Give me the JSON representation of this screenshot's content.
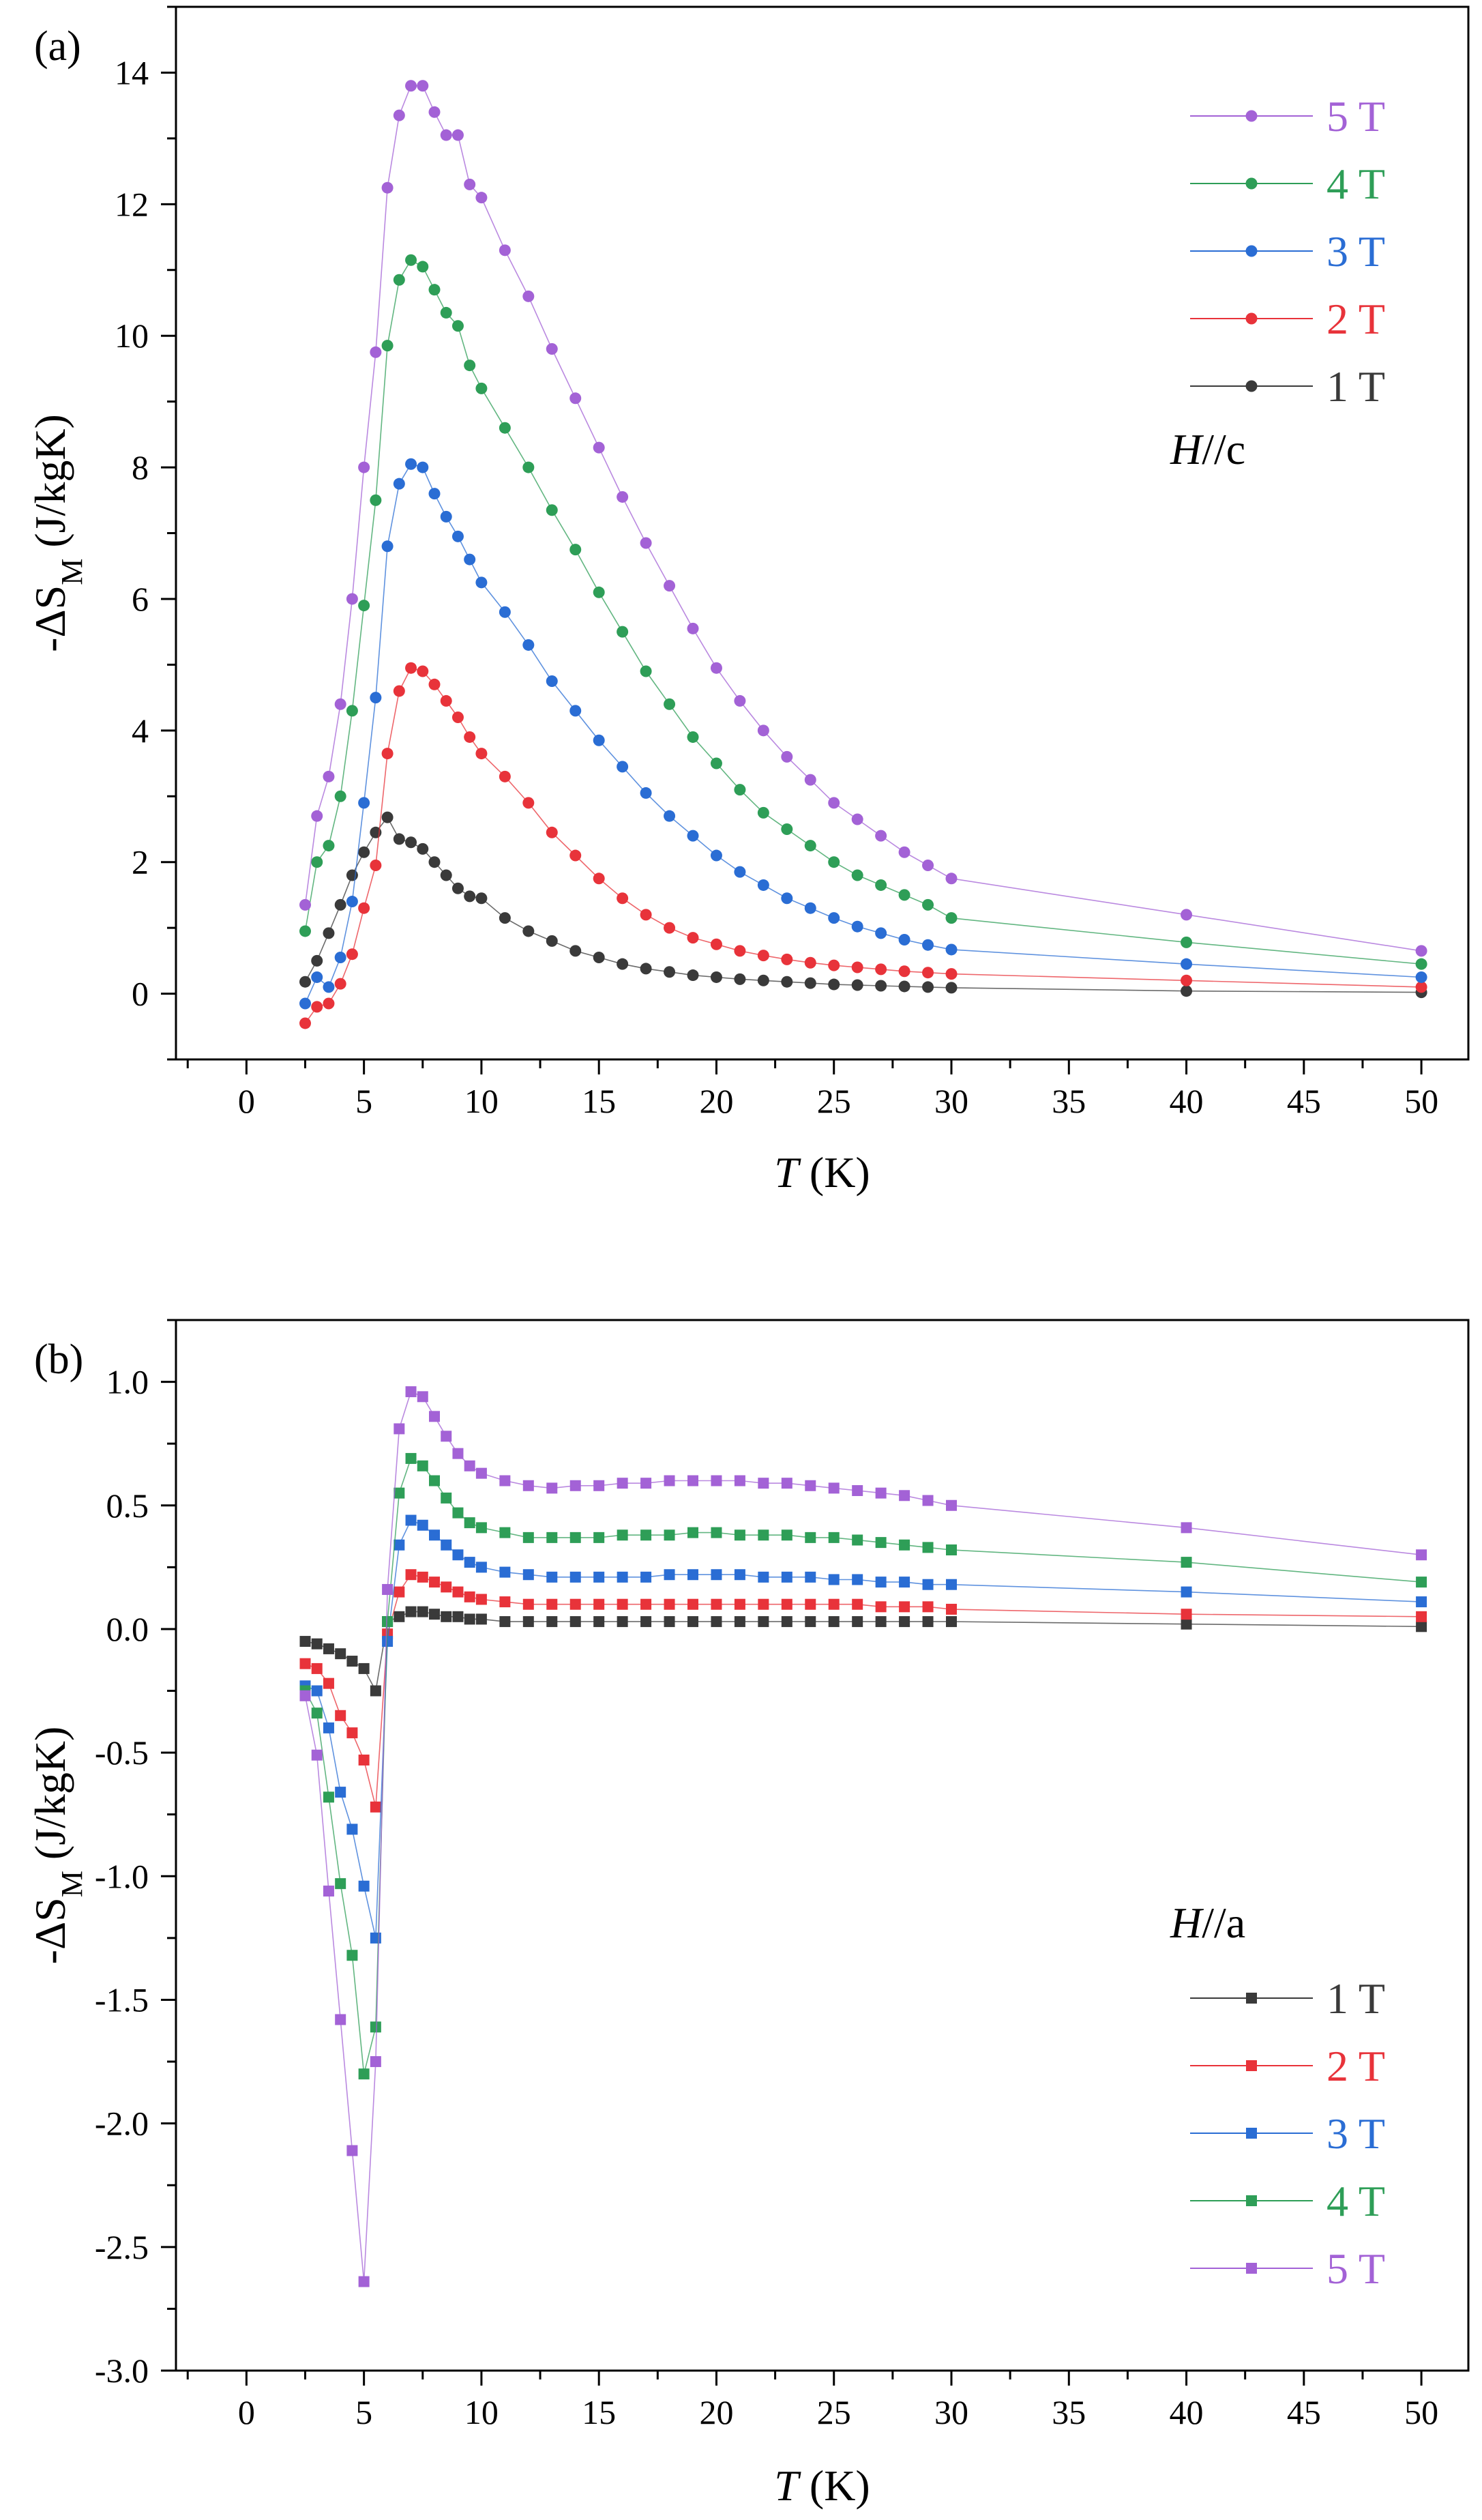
{
  "chart_data": [
    {
      "type": "line",
      "panel_label": "(a)",
      "xlabel_main": "T",
      "xlabel_unit": " (K)",
      "ylabel_main": "-ΔS",
      "ylabel_sub": "M",
      "ylabel_unit": " (J/kgK)",
      "xlim": [
        -3,
        52
      ],
      "ylim": [
        -1,
        15
      ],
      "xticks": [
        0,
        5,
        10,
        15,
        20,
        25,
        30,
        35,
        40,
        45,
        50
      ],
      "yticks": [
        0,
        2,
        4,
        6,
        8,
        10,
        12,
        14
      ],
      "marker": "circle",
      "legend_position": "top-right",
      "legend_order": [
        "5 T",
        "4 T",
        "3 T",
        "2 T",
        "1 T"
      ],
      "annotation_field": "H",
      "annotation_axis": "//c",
      "series": [
        {
          "name": "1 T",
          "color": "#3a3a3a",
          "x": [
            2.5,
            3,
            3.5,
            4,
            4.5,
            5,
            5.5,
            6,
            6.5,
            7,
            7.5,
            8,
            8.5,
            9,
            9.5,
            10,
            11,
            12,
            13,
            14,
            15,
            16,
            17,
            18,
            19,
            20,
            21,
            22,
            23,
            24,
            25,
            26,
            27,
            28,
            29,
            30,
            40,
            50
          ],
          "y": [
            0.18,
            0.5,
            0.92,
            1.35,
            1.8,
            2.15,
            2.45,
            2.68,
            2.35,
            2.3,
            2.2,
            2.0,
            1.8,
            1.6,
            1.48,
            1.45,
            1.15,
            0.95,
            0.8,
            0.65,
            0.55,
            0.45,
            0.38,
            0.33,
            0.28,
            0.25,
            0.22,
            0.2,
            0.18,
            0.16,
            0.14,
            0.13,
            0.12,
            0.11,
            0.1,
            0.09,
            0.04,
            0.02
          ]
        },
        {
          "name": "2 T",
          "color": "#e8333a",
          "x": [
            2.5,
            3,
            3.5,
            4,
            4.5,
            5,
            5.5,
            6,
            6.5,
            7,
            7.5,
            8,
            8.5,
            9,
            9.5,
            10,
            11,
            12,
            13,
            14,
            15,
            16,
            17,
            18,
            19,
            20,
            21,
            22,
            23,
            24,
            25,
            26,
            27,
            28,
            29,
            30,
            40,
            50
          ],
          "y": [
            -0.45,
            -0.2,
            -0.15,
            0.15,
            0.6,
            1.3,
            1.95,
            3.65,
            4.6,
            4.95,
            4.9,
            4.7,
            4.45,
            4.2,
            3.9,
            3.65,
            3.3,
            2.9,
            2.45,
            2.1,
            1.75,
            1.45,
            1.2,
            1.0,
            0.85,
            0.75,
            0.65,
            0.58,
            0.52,
            0.47,
            0.43,
            0.4,
            0.37,
            0.34,
            0.32,
            0.3,
            0.2,
            0.1
          ]
        },
        {
          "name": "3 T",
          "color": "#2a6dd4",
          "x": [
            2.5,
            3,
            3.5,
            4,
            4.5,
            5,
            5.5,
            6,
            6.5,
            7,
            7.5,
            8,
            8.5,
            9,
            9.5,
            10,
            11,
            12,
            13,
            14,
            15,
            16,
            17,
            18,
            19,
            20,
            21,
            22,
            23,
            24,
            25,
            26,
            27,
            28,
            29,
            30,
            40,
            50
          ],
          "y": [
            -0.15,
            0.25,
            0.1,
            0.55,
            1.4,
            2.9,
            4.5,
            6.8,
            7.75,
            8.05,
            8.0,
            7.6,
            7.25,
            6.95,
            6.6,
            6.25,
            5.8,
            5.3,
            4.75,
            4.3,
            3.85,
            3.45,
            3.05,
            2.7,
            2.4,
            2.1,
            1.85,
            1.65,
            1.45,
            1.3,
            1.15,
            1.02,
            0.92,
            0.82,
            0.74,
            0.67,
            0.45,
            0.25
          ]
        },
        {
          "name": "4 T",
          "color": "#2e9e57",
          "x": [
            2.5,
            3,
            3.5,
            4,
            4.5,
            5,
            5.5,
            6,
            6.5,
            7,
            7.5,
            8,
            8.5,
            9,
            9.5,
            10,
            11,
            12,
            13,
            14,
            15,
            16,
            17,
            18,
            19,
            20,
            21,
            22,
            23,
            24,
            25,
            26,
            27,
            28,
            29,
            30,
            40,
            50
          ],
          "y": [
            0.95,
            2.0,
            2.25,
            3.0,
            4.3,
            5.9,
            7.5,
            9.85,
            10.85,
            11.15,
            11.05,
            10.7,
            10.35,
            10.15,
            9.55,
            9.2,
            8.6,
            8.0,
            7.35,
            6.75,
            6.1,
            5.5,
            4.9,
            4.4,
            3.9,
            3.5,
            3.1,
            2.75,
            2.5,
            2.25,
            2.0,
            1.8,
            1.65,
            1.5,
            1.35,
            1.15,
            0.78,
            0.45
          ]
        },
        {
          "name": "5 T",
          "color": "#a362d6",
          "x": [
            2.5,
            3,
            3.5,
            4,
            4.5,
            5,
            5.5,
            6,
            6.5,
            7,
            7.5,
            8,
            8.5,
            9,
            9.5,
            10,
            11,
            12,
            13,
            14,
            15,
            16,
            17,
            18,
            19,
            20,
            21,
            22,
            23,
            24,
            25,
            26,
            27,
            28,
            29,
            30,
            40,
            50
          ],
          "y": [
            1.35,
            2.7,
            3.3,
            4.4,
            6.0,
            8.0,
            9.75,
            12.25,
            13.35,
            13.8,
            13.8,
            13.4,
            13.05,
            13.05,
            12.3,
            12.1,
            11.3,
            10.6,
            9.8,
            9.05,
            8.3,
            7.55,
            6.85,
            6.2,
            5.55,
            4.95,
            4.45,
            4.0,
            3.6,
            3.25,
            2.9,
            2.65,
            2.4,
            2.15,
            1.95,
            1.75,
            1.2,
            0.65
          ]
        }
      ]
    },
    {
      "type": "line",
      "panel_label": "(b)",
      "xlabel_main": "T",
      "xlabel_unit": " (K)",
      "ylabel_main": "-ΔS",
      "ylabel_sub": "M",
      "ylabel_unit": " (J/kgK)",
      "xlim": [
        -3,
        52
      ],
      "ylim": [
        -3.0,
        1.25
      ],
      "xticks": [
        0,
        5,
        10,
        15,
        20,
        25,
        30,
        35,
        40,
        45,
        50
      ],
      "yticks": [
        -3.0,
        -2.5,
        -2.0,
        -1.5,
        -1.0,
        -0.5,
        0.0,
        0.5,
        1.0
      ],
      "ytick_labels": [
        "-3.0",
        "-2.5",
        "-2.0",
        "-1.5",
        "-1.0",
        "-0.5",
        "0.0",
        "0.5",
        "1.0"
      ],
      "marker": "square",
      "legend_position": "bottom-right",
      "legend_order": [
        "1 T",
        "2 T",
        "3 T",
        "4 T",
        "5 T"
      ],
      "annotation_field": "H",
      "annotation_axis": "//a",
      "series": [
        {
          "name": "1 T",
          "color": "#3a3a3a",
          "x": [
            2.5,
            3,
            3.5,
            4,
            4.5,
            5,
            5.5,
            6,
            6.5,
            7,
            7.5,
            8,
            8.5,
            9,
            9.5,
            10,
            11,
            12,
            13,
            14,
            15,
            16,
            17,
            18,
            19,
            20,
            21,
            22,
            23,
            24,
            25,
            26,
            27,
            28,
            29,
            30,
            40,
            50
          ],
          "y": [
            -0.05,
            -0.06,
            -0.08,
            -0.1,
            -0.13,
            -0.16,
            -0.25,
            0.03,
            0.05,
            0.07,
            0.07,
            0.06,
            0.05,
            0.05,
            0.04,
            0.04,
            0.03,
            0.03,
            0.03,
            0.03,
            0.03,
            0.03,
            0.03,
            0.03,
            0.03,
            0.03,
            0.03,
            0.03,
            0.03,
            0.03,
            0.03,
            0.03,
            0.03,
            0.03,
            0.03,
            0.03,
            0.02,
            0.01
          ]
        },
        {
          "name": "2 T",
          "color": "#e8333a",
          "x": [
            2.5,
            3,
            3.5,
            4,
            4.5,
            5,
            5.5,
            6,
            6.5,
            7,
            7.5,
            8,
            8.5,
            9,
            9.5,
            10,
            11,
            12,
            13,
            14,
            15,
            16,
            17,
            18,
            19,
            20,
            21,
            22,
            23,
            24,
            25,
            26,
            27,
            28,
            29,
            30,
            40,
            50
          ],
          "y": [
            -0.14,
            -0.16,
            -0.22,
            -0.35,
            -0.42,
            -0.53,
            -0.72,
            -0.02,
            0.15,
            0.22,
            0.21,
            0.19,
            0.17,
            0.15,
            0.13,
            0.12,
            0.11,
            0.1,
            0.1,
            0.1,
            0.1,
            0.1,
            0.1,
            0.1,
            0.1,
            0.1,
            0.1,
            0.1,
            0.1,
            0.1,
            0.1,
            0.1,
            0.09,
            0.09,
            0.09,
            0.08,
            0.06,
            0.05
          ]
        },
        {
          "name": "3 T",
          "color": "#2a6dd4",
          "x": [
            2.5,
            3,
            3.5,
            4,
            4.5,
            5,
            5.5,
            6,
            6.5,
            7,
            7.5,
            8,
            8.5,
            9,
            9.5,
            10,
            11,
            12,
            13,
            14,
            15,
            16,
            17,
            18,
            19,
            20,
            21,
            22,
            23,
            24,
            25,
            26,
            27,
            28,
            29,
            30,
            40,
            50
          ],
          "y": [
            -0.23,
            -0.25,
            -0.4,
            -0.66,
            -0.81,
            -1.04,
            -1.25,
            -0.05,
            0.34,
            0.44,
            0.42,
            0.38,
            0.34,
            0.3,
            0.27,
            0.25,
            0.23,
            0.22,
            0.21,
            0.21,
            0.21,
            0.21,
            0.21,
            0.22,
            0.22,
            0.22,
            0.22,
            0.21,
            0.21,
            0.21,
            0.2,
            0.2,
            0.19,
            0.19,
            0.18,
            0.18,
            0.15,
            0.11
          ]
        },
        {
          "name": "4 T",
          "color": "#2e9e57",
          "x": [
            2.5,
            3,
            3.5,
            4,
            4.5,
            5,
            5.5,
            6,
            6.5,
            7,
            7.5,
            8,
            8.5,
            9,
            9.5,
            10,
            11,
            12,
            13,
            14,
            15,
            16,
            17,
            18,
            19,
            20,
            21,
            22,
            23,
            24,
            25,
            26,
            27,
            28,
            29,
            30,
            40,
            50
          ],
          "y": [
            -0.25,
            -0.34,
            -0.68,
            -1.03,
            -1.32,
            -1.8,
            -1.61,
            0.03,
            0.55,
            0.69,
            0.66,
            0.6,
            0.53,
            0.47,
            0.43,
            0.41,
            0.39,
            0.37,
            0.37,
            0.37,
            0.37,
            0.38,
            0.38,
            0.38,
            0.39,
            0.39,
            0.38,
            0.38,
            0.38,
            0.37,
            0.37,
            0.36,
            0.35,
            0.34,
            0.33,
            0.32,
            0.27,
            0.19
          ]
        },
        {
          "name": "5 T",
          "color": "#a362d6",
          "x": [
            2.5,
            3,
            3.5,
            4,
            4.5,
            5,
            5.5,
            6,
            6.5,
            7,
            7.5,
            8,
            8.5,
            9,
            9.5,
            10,
            11,
            12,
            13,
            14,
            15,
            16,
            17,
            18,
            19,
            20,
            21,
            22,
            23,
            24,
            25,
            26,
            27,
            28,
            29,
            30,
            40,
            50
          ],
          "y": [
            -0.27,
            -0.51,
            -1.06,
            -1.58,
            -2.11,
            -2.64,
            -1.75,
            0.16,
            0.81,
            0.96,
            0.94,
            0.86,
            0.78,
            0.71,
            0.66,
            0.63,
            0.6,
            0.58,
            0.57,
            0.58,
            0.58,
            0.59,
            0.59,
            0.6,
            0.6,
            0.6,
            0.6,
            0.59,
            0.59,
            0.58,
            0.57,
            0.56,
            0.55,
            0.54,
            0.52,
            0.5,
            0.41,
            0.3
          ]
        }
      ]
    }
  ]
}
